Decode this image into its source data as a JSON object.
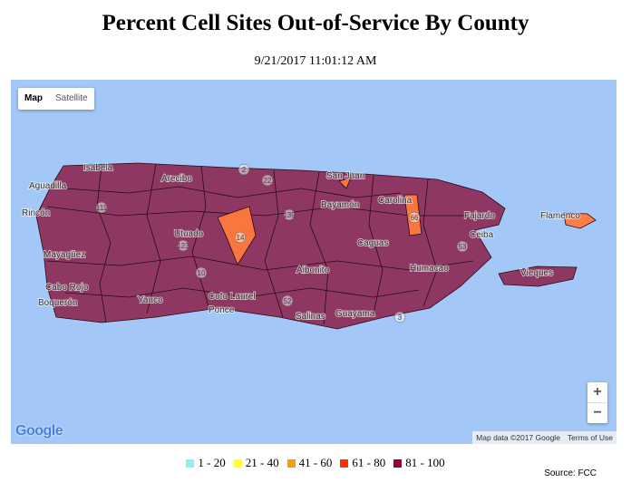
{
  "title": "Percent Cell Sites Out-of-Service By County",
  "timestamp": "9/21/2017 11:01:12 AM",
  "map": {
    "controls": [
      "Map",
      "Satellite"
    ],
    "zoom": [
      "+",
      "−"
    ],
    "logo": "Google",
    "attribution": "Map data ©2017 Google",
    "terms": "Terms of Use",
    "places": [
      "Isabela",
      "Aguadilla",
      "Rincón",
      "Mayagüez",
      "Cabo Rojo",
      "Boquerón",
      "Arecibo",
      "Utuado",
      "San Juan",
      "Bayamón",
      "Carolina",
      "Fajardo",
      "Caguas",
      "Ceiba",
      "Humacao",
      "Aibonito",
      "Yauco",
      "Coto Laurel",
      "Ponce",
      "Salinas",
      "Guayama",
      "Flamenco",
      "Vieques"
    ],
    "roads": [
      "22",
      "2",
      "111",
      "10",
      "123",
      "139",
      "52",
      "3",
      "53",
      "66",
      "14"
    ]
  },
  "legend": [
    {
      "label": "1 - 20",
      "color": "#8ff2f2"
    },
    {
      "label": "21 - 40",
      "color": "#ffff33"
    },
    {
      "label": "41 - 60",
      "color": "#ff9900"
    },
    {
      "label": "61 - 80",
      "color": "#ff3300"
    },
    {
      "label": "81 - 100",
      "color": "#990033"
    }
  ],
  "source": "Source: FCC"
}
